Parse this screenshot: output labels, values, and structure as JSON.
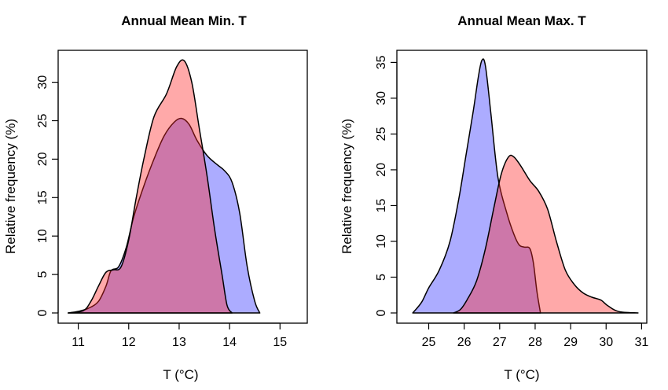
{
  "chart_data": [
    {
      "type": "area",
      "title": "Annual Mean Min. T",
      "xlabel": "T (°C)",
      "ylabel": "Relative frequency (%)",
      "xlim": [
        10.6,
        15.4
      ],
      "ylim": [
        0,
        35.5
      ],
      "xticks": [
        11,
        12,
        13,
        14,
        15
      ],
      "yticks": [
        0,
        5,
        10,
        15,
        20,
        25,
        30
      ],
      "grid": false,
      "series": [
        {
          "color": "rgba(90,90,255,0.5)",
          "points": [
            [
              10.8,
              0
            ],
            [
              11.0,
              0.2
            ],
            [
              11.2,
              0.6
            ],
            [
              11.4,
              1.5
            ],
            [
              11.55,
              3.5
            ],
            [
              11.65,
              5.5
            ],
            [
              11.8,
              6
            ],
            [
              11.95,
              8.5
            ],
            [
              12.1,
              12.5
            ],
            [
              12.3,
              16.5
            ],
            [
              12.5,
              20
            ],
            [
              12.7,
              23
            ],
            [
              12.9,
              24.8
            ],
            [
              13.05,
              25.3
            ],
            [
              13.2,
              24.5
            ],
            [
              13.35,
              22.5
            ],
            [
              13.55,
              20.5
            ],
            [
              13.75,
              19.3
            ],
            [
              13.9,
              18.5
            ],
            [
              14.05,
              17
            ],
            [
              14.2,
              13
            ],
            [
              14.35,
              6
            ],
            [
              14.5,
              1.5
            ],
            [
              14.6,
              0
            ]
          ]
        },
        {
          "color": "rgba(255,40,40,0.4)",
          "points": [
            [
              10.8,
              0
            ],
            [
              11.1,
              0.3
            ],
            [
              11.25,
              1.5
            ],
            [
              11.4,
              3.5
            ],
            [
              11.55,
              5.3
            ],
            [
              11.7,
              5.6
            ],
            [
              11.85,
              6
            ],
            [
              12.0,
              9.5
            ],
            [
              12.15,
              15
            ],
            [
              12.3,
              20
            ],
            [
              12.5,
              25.5
            ],
            [
              12.75,
              28.5
            ],
            [
              12.95,
              32
            ],
            [
              13.1,
              32.8
            ],
            [
              13.25,
              30
            ],
            [
              13.4,
              24
            ],
            [
              13.55,
              18
            ],
            [
              13.7,
              11
            ],
            [
              13.85,
              5
            ],
            [
              13.95,
              1
            ],
            [
              14.05,
              0
            ]
          ]
        }
      ]
    },
    {
      "type": "area",
      "title": "Annual Mean Max. T",
      "xlabel": "T (°C)",
      "ylabel": "Relative frequency (%)",
      "xlim": [
        24.4,
        31.2
      ],
      "ylim": [
        0,
        36.2
      ],
      "xticks": [
        25,
        26,
        27,
        28,
        29,
        30,
        31
      ],
      "yticks": [
        0,
        5,
        10,
        15,
        20,
        25,
        30,
        35
      ],
      "grid": false,
      "series": [
        {
          "color": "rgba(90,90,255,0.5)",
          "points": [
            [
              24.55,
              0
            ],
            [
              24.8,
              1.5
            ],
            [
              25.0,
              3.5
            ],
            [
              25.3,
              6
            ],
            [
              25.6,
              10
            ],
            [
              25.85,
              16
            ],
            [
              26.05,
              22
            ],
            [
              26.25,
              28
            ],
            [
              26.4,
              33
            ],
            [
              26.5,
              35.3
            ],
            [
              26.6,
              34.5
            ],
            [
              26.75,
              28
            ],
            [
              26.95,
              19
            ],
            [
              27.2,
              14
            ],
            [
              27.4,
              11
            ],
            [
              27.55,
              9.5
            ],
            [
              27.7,
              9.2
            ],
            [
              27.85,
              9
            ],
            [
              27.95,
              7
            ],
            [
              28.05,
              3
            ],
            [
              28.15,
              0
            ]
          ]
        },
        {
          "color": "rgba(255,40,40,0.4)",
          "points": [
            [
              25.7,
              0
            ],
            [
              25.9,
              0.5
            ],
            [
              26.1,
              2
            ],
            [
              26.35,
              4.5
            ],
            [
              26.6,
              9
            ],
            [
              26.85,
              15
            ],
            [
              27.05,
              19.5
            ],
            [
              27.25,
              21.8
            ],
            [
              27.4,
              21.8
            ],
            [
              27.6,
              20.5
            ],
            [
              27.85,
              18.5
            ],
            [
              28.1,
              17
            ],
            [
              28.35,
              14.5
            ],
            [
              28.6,
              10
            ],
            [
              28.85,
              6
            ],
            [
              29.1,
              4
            ],
            [
              29.35,
              2.8
            ],
            [
              29.6,
              2.2
            ],
            [
              29.85,
              1.8
            ],
            [
              30.05,
              1
            ],
            [
              30.35,
              0.2
            ],
            [
              30.9,
              0
            ]
          ]
        }
      ]
    }
  ]
}
